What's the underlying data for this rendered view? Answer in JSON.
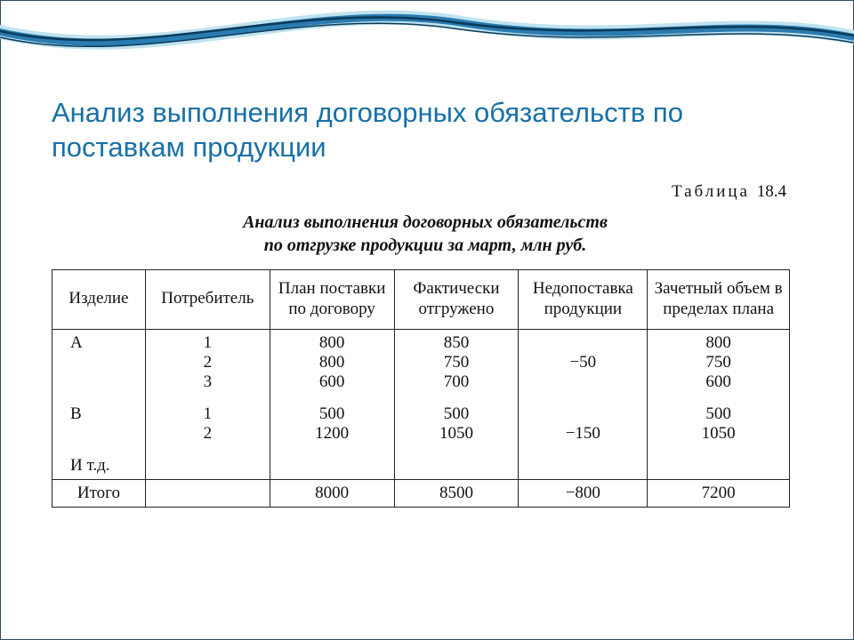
{
  "colors": {
    "heading": "#1770a7",
    "border": "#222222",
    "wave_dark": "#0a3a5a",
    "wave_mid": "#2a7bb0",
    "wave_light": "#bfe3ef"
  },
  "heading": "Анализ выполнения договорных обязательств по поставкам продукции",
  "table_label_word": "Таблица",
  "table_label_num": "18.4",
  "caption_line1": "Анализ выполнения договорных обязательств",
  "caption_line2": "по отгрузке продукции за март, млн руб.",
  "columns": [
    "Изделие",
    "Потребитель",
    "План поставки по договору",
    "Фактически отгружено",
    "Недопоставка продукции",
    "Зачетный объем в пределах плана"
  ],
  "groups": [
    {
      "product": "A",
      "rows": [
        {
          "consumer": "1",
          "plan": "800",
          "fact": "850",
          "short": "",
          "credit": "800"
        },
        {
          "consumer": "2",
          "plan": "800",
          "fact": "750",
          "short": "−50",
          "credit": "750"
        },
        {
          "consumer": "3",
          "plan": "600",
          "fact": "700",
          "short": "",
          "credit": "600"
        }
      ]
    },
    {
      "product": "B",
      "rows": [
        {
          "consumer": "1",
          "plan": "500",
          "fact": "500",
          "short": "",
          "credit": "500"
        },
        {
          "consumer": "2",
          "plan": "1200",
          "fact": "1050",
          "short": "−150",
          "credit": "1050"
        }
      ]
    },
    {
      "product": "И т.д.",
      "rows": []
    }
  ],
  "total": {
    "label": "Итого",
    "plan": "8000",
    "fact": "8500",
    "short": "−800",
    "credit": "7200"
  }
}
